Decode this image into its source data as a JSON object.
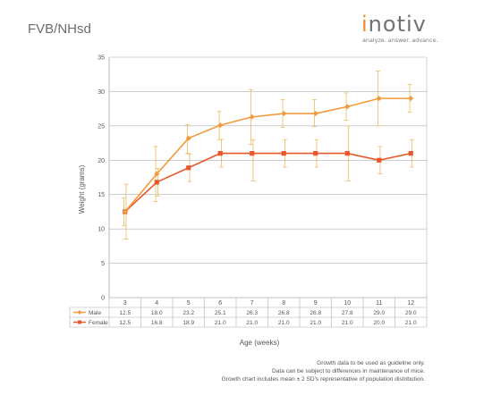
{
  "header": {
    "strain_title": "FVB/NHsd",
    "logo_text": "inotiv",
    "logo_tagline": "analyze. answer. advance."
  },
  "colors": {
    "male": "#f39a3c",
    "female": "#e8582a",
    "error_bar": "#eab34a",
    "grid": "#b0b0b0",
    "axis": "#9a9a9a",
    "logo_accent": "#f08a2a"
  },
  "chart_data": {
    "type": "line",
    "title": "FVB/NHsd",
    "xlabel": "Age (weeks)",
    "ylabel": "Weight (grams)",
    "categories": [
      "3",
      "4",
      "5",
      "6",
      "7",
      "8",
      "9",
      "10",
      "11",
      "12"
    ],
    "ylim": [
      0,
      35
    ],
    "yticks": [
      0,
      5,
      10,
      15,
      20,
      25,
      30,
      35
    ],
    "grid": true,
    "legend": "table-below",
    "series": [
      {
        "name": "Male",
        "marker": "diamond",
        "values": [
          12.5,
          18.0,
          23.2,
          25.1,
          26.3,
          26.8,
          26.8,
          27.8,
          29.0,
          29.0
        ],
        "labels": [
          "12.5",
          "18.0",
          "23.2",
          "25.1",
          "26.3",
          "26.8",
          "26.8",
          "27.8",
          "29.0",
          "29.0"
        ],
        "error_low": [
          10.5,
          14.0,
          21.0,
          23.0,
          22.3,
          24.8,
          24.9,
          25.8,
          25.0,
          27.0
        ],
        "error_high": [
          14.5,
          22.0,
          25.2,
          27.1,
          30.3,
          28.8,
          28.8,
          29.8,
          33.0,
          31.0
        ]
      },
      {
        "name": "Female",
        "marker": "square",
        "values": [
          12.5,
          16.8,
          18.9,
          21.0,
          21.0,
          21.0,
          21.0,
          21.0,
          20.0,
          21.0
        ],
        "labels": [
          "12.5",
          "16.8",
          "18.9",
          "21.0",
          "21.0",
          "21.0",
          "21.0",
          "21.0",
          "20.0",
          "21.0"
        ],
        "error_low": [
          8.5,
          14.8,
          16.9,
          19.0,
          17.0,
          19.0,
          19.0,
          17.0,
          18.0,
          19.0
        ],
        "error_high": [
          16.5,
          18.8,
          20.9,
          23.0,
          23.0,
          23.0,
          23.0,
          25.0,
          22.0,
          23.0
        ]
      }
    ]
  },
  "footnotes": [
    "Growth data to be used as guideline only.",
    "Data can be subject to differences in maintenance of mice.",
    "Growth chart includes mean ± 2 SD's representative of population distribution."
  ]
}
